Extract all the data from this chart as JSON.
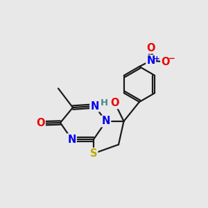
{
  "bg_color": "#e8e8e8",
  "bond_color": "#1a1a1a",
  "bond_width": 1.6,
  "atom_colors": {
    "N": "#0000ee",
    "O": "#ee0000",
    "S": "#bbaa00",
    "C": "#1a1a1a",
    "H": "#4a8888"
  },
  "figsize": [
    3.0,
    3.0
  ],
  "dpi": 100,
  "xlim": [
    0,
    10
  ],
  "ylim": [
    0,
    10
  ],
  "font_size_atom": 10.5,
  "font_size_me": 8.5,
  "font_size_charge": 7.5
}
